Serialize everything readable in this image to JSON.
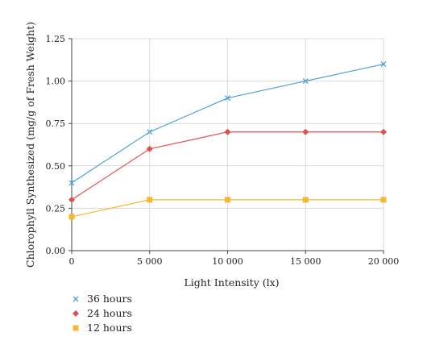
{
  "chart_data": {
    "type": "line",
    "x": [
      0,
      5000,
      10000,
      15000,
      20000
    ],
    "x_tick_labels": [
      "0",
      "5 000",
      "10 000",
      "15 000",
      "20 000"
    ],
    "y_tick_labels": [
      "0.00",
      "0.25",
      "0.50",
      "0.75",
      "1.00",
      "1.25"
    ],
    "xlim": [
      0,
      20000
    ],
    "ylim": [
      0,
      1.25
    ],
    "xlabel": "Light Intensity (lx)",
    "ylabel": "Chlorophyll Synthesized (mg/g of Fresh Weight)",
    "grid": true,
    "legend_position": "bottom-left",
    "series": [
      {
        "name": "36 hours",
        "marker": "x",
        "color": "#4aa3d8",
        "values": [
          0.4,
          0.7,
          0.9,
          1.0,
          1.1
        ]
      },
      {
        "name": "24 hours",
        "marker": "diamond",
        "color": "#e05050",
        "values": [
          0.3,
          0.6,
          0.7,
          0.7,
          0.7
        ]
      },
      {
        "name": "12 hours",
        "marker": "square",
        "color": "#f5b82e",
        "values": [
          0.2,
          0.3,
          0.3,
          0.3,
          0.3
        ]
      }
    ]
  }
}
